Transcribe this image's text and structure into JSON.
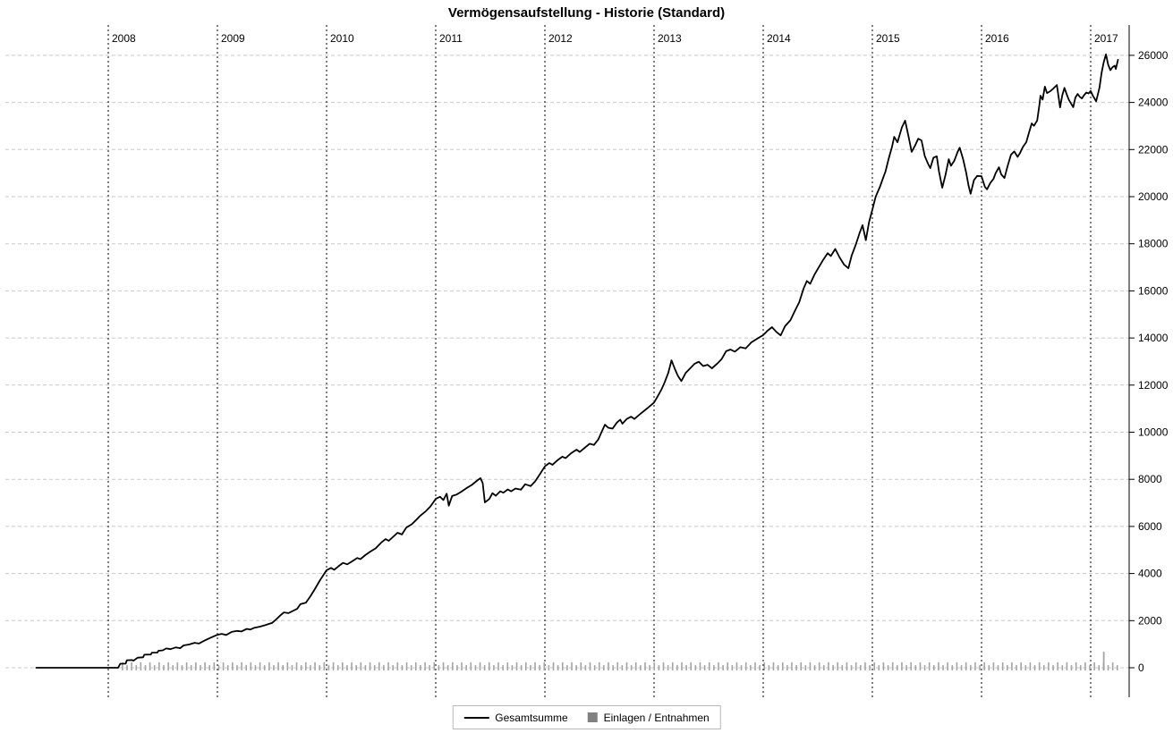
{
  "title": "Vermögensaufstellung - Historie (Standard)",
  "legend": {
    "items": [
      {
        "label": "Gesamtsumme",
        "swatch": "line",
        "color": "#000000"
      },
      {
        "label": "Einlagen / Entnahmen",
        "swatch": "square",
        "color": "#808080"
      }
    ]
  },
  "colors": {
    "background": "#ffffff",
    "axis": "#000000",
    "year_gridline": "#000000",
    "value_gridline": "#c9c9c9",
    "line": "#000000",
    "bars": "#a4a4a4",
    "text": "#000000",
    "legend_border": "#b8b8b8"
  },
  "chart_data": {
    "type": "line",
    "title": "Vermögensaufstellung - Historie (Standard)",
    "xlabel": "",
    "ylabel": "",
    "grid": true,
    "legend_position": "bottom-center",
    "x_axis": {
      "ticks": [
        2008,
        2009,
        2010,
        2011,
        2012,
        2013,
        2014,
        2015,
        2016,
        2017
      ],
      "label_position": "top",
      "gridlines": "dashed-black"
    },
    "y_axis": {
      "side": "right",
      "ticks": [
        0,
        2000,
        4000,
        6000,
        8000,
        10000,
        12000,
        14000,
        16000,
        18000,
        20000,
        22000,
        24000,
        26000
      ],
      "range_shown": [
        -1250,
        27290
      ],
      "gridlines": "dashed-light-gray"
    },
    "series": [
      {
        "name": "Gesamtsumme",
        "type": "line",
        "color": "#000000",
        "points": [
          [
            2007.34,
            0
          ],
          [
            2007.6,
            0
          ],
          [
            2007.9,
            0
          ],
          [
            2008.09,
            0
          ],
          [
            2008.11,
            170
          ],
          [
            2008.16,
            175
          ],
          [
            2008.17,
            320
          ],
          [
            2008.22,
            325
          ],
          [
            2008.23,
            300
          ],
          [
            2008.27,
            430
          ],
          [
            2008.32,
            445
          ],
          [
            2008.33,
            555
          ],
          [
            2008.39,
            560
          ],
          [
            2008.4,
            640
          ],
          [
            2008.45,
            645
          ],
          [
            2008.46,
            720
          ],
          [
            2008.5,
            740
          ],
          [
            2008.53,
            820
          ],
          [
            2008.57,
            790
          ],
          [
            2008.62,
            865
          ],
          [
            2008.66,
            830
          ],
          [
            2008.69,
            950
          ],
          [
            2008.74,
            985
          ],
          [
            2008.79,
            1060
          ],
          [
            2008.83,
            1030
          ],
          [
            2008.88,
            1150
          ],
          [
            2008.93,
            1260
          ],
          [
            2009.0,
            1400
          ],
          [
            2009.04,
            1440
          ],
          [
            2009.08,
            1390
          ],
          [
            2009.13,
            1520
          ],
          [
            2009.18,
            1565
          ],
          [
            2009.22,
            1540
          ],
          [
            2009.27,
            1650
          ],
          [
            2009.3,
            1620
          ],
          [
            2009.34,
            1700
          ],
          [
            2009.39,
            1745
          ],
          [
            2009.44,
            1815
          ],
          [
            2009.5,
            1900
          ],
          [
            2009.54,
            2060
          ],
          [
            2009.58,
            2240
          ],
          [
            2009.61,
            2350
          ],
          [
            2009.65,
            2320
          ],
          [
            2009.69,
            2410
          ],
          [
            2009.73,
            2500
          ],
          [
            2009.76,
            2700
          ],
          [
            2009.81,
            2760
          ],
          [
            2009.85,
            3020
          ],
          [
            2009.89,
            3320
          ],
          [
            2009.94,
            3720
          ],
          [
            2010.0,
            4140
          ],
          [
            2010.04,
            4240
          ],
          [
            2010.07,
            4160
          ],
          [
            2010.11,
            4310
          ],
          [
            2010.15,
            4450
          ],
          [
            2010.19,
            4390
          ],
          [
            2010.23,
            4510
          ],
          [
            2010.28,
            4660
          ],
          [
            2010.31,
            4610
          ],
          [
            2010.36,
            4800
          ],
          [
            2010.4,
            4930
          ],
          [
            2010.45,
            5070
          ],
          [
            2010.5,
            5310
          ],
          [
            2010.54,
            5460
          ],
          [
            2010.57,
            5390
          ],
          [
            2010.61,
            5560
          ],
          [
            2010.65,
            5730
          ],
          [
            2010.69,
            5660
          ],
          [
            2010.73,
            5950
          ],
          [
            2010.78,
            6090
          ],
          [
            2010.82,
            6270
          ],
          [
            2010.86,
            6460
          ],
          [
            2010.91,
            6650
          ],
          [
            2010.95,
            6840
          ],
          [
            2011.0,
            7170
          ],
          [
            2011.04,
            7260
          ],
          [
            2011.07,
            7120
          ],
          [
            2011.1,
            7390
          ],
          [
            2011.12,
            6880
          ],
          [
            2011.15,
            7290
          ],
          [
            2011.19,
            7350
          ],
          [
            2011.23,
            7460
          ],
          [
            2011.28,
            7620
          ],
          [
            2011.33,
            7760
          ],
          [
            2011.38,
            7950
          ],
          [
            2011.41,
            8050
          ],
          [
            2011.43,
            7840
          ],
          [
            2011.45,
            7020
          ],
          [
            2011.49,
            7160
          ],
          [
            2011.52,
            7410
          ],
          [
            2011.55,
            7300
          ],
          [
            2011.59,
            7490
          ],
          [
            2011.62,
            7430
          ],
          [
            2011.66,
            7570
          ],
          [
            2011.69,
            7490
          ],
          [
            2011.73,
            7610
          ],
          [
            2011.78,
            7560
          ],
          [
            2011.82,
            7790
          ],
          [
            2011.87,
            7710
          ],
          [
            2011.91,
            7910
          ],
          [
            2011.95,
            8190
          ],
          [
            2012.0,
            8550
          ],
          [
            2012.04,
            8690
          ],
          [
            2012.07,
            8620
          ],
          [
            2012.11,
            8790
          ],
          [
            2012.16,
            8960
          ],
          [
            2012.19,
            8900
          ],
          [
            2012.24,
            9110
          ],
          [
            2012.29,
            9260
          ],
          [
            2012.32,
            9160
          ],
          [
            2012.37,
            9360
          ],
          [
            2012.41,
            9510
          ],
          [
            2012.45,
            9460
          ],
          [
            2012.49,
            9700
          ],
          [
            2012.52,
            10010
          ],
          [
            2012.55,
            10320
          ],
          [
            2012.58,
            10190
          ],
          [
            2012.62,
            10150
          ],
          [
            2012.66,
            10410
          ],
          [
            2012.69,
            10530
          ],
          [
            2012.71,
            10360
          ],
          [
            2012.75,
            10560
          ],
          [
            2012.79,
            10660
          ],
          [
            2012.82,
            10560
          ],
          [
            2012.87,
            10760
          ],
          [
            2012.91,
            10910
          ],
          [
            2012.95,
            11060
          ],
          [
            2013.0,
            11260
          ],
          [
            2013.03,
            11500
          ],
          [
            2013.07,
            11830
          ],
          [
            2013.1,
            12150
          ],
          [
            2013.13,
            12520
          ],
          [
            2013.16,
            13050
          ],
          [
            2013.19,
            12690
          ],
          [
            2013.22,
            12380
          ],
          [
            2013.25,
            12170
          ],
          [
            2013.29,
            12520
          ],
          [
            2013.33,
            12710
          ],
          [
            2013.37,
            12900
          ],
          [
            2013.41,
            12990
          ],
          [
            2013.45,
            12810
          ],
          [
            2013.49,
            12860
          ],
          [
            2013.53,
            12710
          ],
          [
            2013.58,
            12920
          ],
          [
            2013.62,
            13110
          ],
          [
            2013.66,
            13440
          ],
          [
            2013.7,
            13510
          ],
          [
            2013.74,
            13420
          ],
          [
            2013.79,
            13610
          ],
          [
            2013.84,
            13560
          ],
          [
            2013.89,
            13810
          ],
          [
            2013.94,
            13960
          ],
          [
            2014.0,
            14120
          ],
          [
            2014.04,
            14310
          ],
          [
            2014.08,
            14460
          ],
          [
            2014.12,
            14260
          ],
          [
            2014.16,
            14110
          ],
          [
            2014.2,
            14500
          ],
          [
            2014.25,
            14760
          ],
          [
            2014.29,
            15150
          ],
          [
            2014.33,
            15520
          ],
          [
            2014.37,
            16100
          ],
          [
            2014.4,
            16420
          ],
          [
            2014.43,
            16300
          ],
          [
            2014.47,
            16690
          ],
          [
            2014.51,
            17010
          ],
          [
            2014.55,
            17320
          ],
          [
            2014.59,
            17600
          ],
          [
            2014.62,
            17480
          ],
          [
            2014.66,
            17780
          ],
          [
            2014.7,
            17420
          ],
          [
            2014.74,
            17120
          ],
          [
            2014.78,
            16960
          ],
          [
            2014.81,
            17490
          ],
          [
            2014.85,
            17990
          ],
          [
            2014.88,
            18420
          ],
          [
            2014.91,
            18790
          ],
          [
            2014.94,
            18150
          ],
          [
            2014.97,
            18920
          ],
          [
            2015.0,
            19450
          ],
          [
            2015.03,
            20000
          ],
          [
            2015.07,
            20420
          ],
          [
            2015.1,
            20820
          ],
          [
            2015.12,
            21060
          ],
          [
            2015.15,
            21620
          ],
          [
            2015.18,
            22120
          ],
          [
            2015.2,
            22540
          ],
          [
            2015.23,
            22310
          ],
          [
            2015.27,
            22930
          ],
          [
            2015.3,
            23230
          ],
          [
            2015.33,
            22580
          ],
          [
            2015.36,
            21900
          ],
          [
            2015.39,
            22160
          ],
          [
            2015.42,
            22460
          ],
          [
            2015.45,
            22390
          ],
          [
            2015.48,
            21720
          ],
          [
            2015.51,
            21400
          ],
          [
            2015.53,
            21210
          ],
          [
            2015.56,
            21660
          ],
          [
            2015.59,
            21710
          ],
          [
            2015.61,
            21080
          ],
          [
            2015.64,
            20380
          ],
          [
            2015.67,
            20920
          ],
          [
            2015.7,
            21590
          ],
          [
            2015.72,
            21310
          ],
          [
            2015.75,
            21520
          ],
          [
            2015.78,
            21890
          ],
          [
            2015.8,
            22080
          ],
          [
            2015.83,
            21610
          ],
          [
            2015.86,
            21010
          ],
          [
            2015.88,
            20490
          ],
          [
            2015.9,
            20120
          ],
          [
            2015.93,
            20700
          ],
          [
            2015.96,
            20880
          ],
          [
            2016.0,
            20870
          ],
          [
            2016.03,
            20420
          ],
          [
            2016.05,
            20310
          ],
          [
            2016.08,
            20580
          ],
          [
            2016.11,
            20760
          ],
          [
            2016.13,
            21010
          ],
          [
            2016.16,
            21250
          ],
          [
            2016.18,
            20950
          ],
          [
            2016.21,
            20790
          ],
          [
            2016.24,
            21320
          ],
          [
            2016.27,
            21780
          ],
          [
            2016.3,
            21920
          ],
          [
            2016.33,
            21690
          ],
          [
            2016.35,
            21830
          ],
          [
            2016.38,
            22120
          ],
          [
            2016.41,
            22310
          ],
          [
            2016.43,
            22650
          ],
          [
            2016.46,
            23110
          ],
          [
            2016.48,
            23010
          ],
          [
            2016.51,
            23230
          ],
          [
            2016.53,
            23900
          ],
          [
            2016.54,
            24290
          ],
          [
            2016.56,
            24120
          ],
          [
            2016.58,
            24670
          ],
          [
            2016.6,
            24400
          ],
          [
            2016.63,
            24480
          ],
          [
            2016.66,
            24600
          ],
          [
            2016.69,
            24740
          ],
          [
            2016.72,
            23790
          ],
          [
            2016.74,
            24310
          ],
          [
            2016.76,
            24620
          ],
          [
            2016.78,
            24340
          ],
          [
            2016.8,
            24110
          ],
          [
            2016.82,
            23960
          ],
          [
            2016.84,
            23800
          ],
          [
            2016.86,
            24210
          ],
          [
            2016.88,
            24360
          ],
          [
            2016.9,
            24240
          ],
          [
            2016.92,
            24170
          ],
          [
            2016.94,
            24310
          ],
          [
            2016.96,
            24420
          ],
          [
            2016.98,
            24380
          ],
          [
            2017.0,
            24490
          ],
          [
            2017.02,
            24290
          ],
          [
            2017.05,
            24050
          ],
          [
            2017.08,
            24620
          ],
          [
            2017.1,
            25260
          ],
          [
            2017.12,
            25710
          ],
          [
            2017.14,
            26040
          ],
          [
            2017.16,
            25610
          ],
          [
            2017.18,
            25370
          ],
          [
            2017.2,
            25500
          ],
          [
            2017.22,
            25560
          ],
          [
            2017.23,
            25420
          ],
          [
            2017.25,
            25810
          ]
        ]
      },
      {
        "name": "Einlagen / Entnahmen",
        "type": "bar",
        "color": "#a4a4a4",
        "bars_pattern": {
          "start_year": 2008.13,
          "end_year": 2017.27,
          "interval_years": 0.042,
          "alternating_values": [
            230,
            110
          ],
          "spikes": [
            {
              "year": 2017.12,
              "value": 680
            }
          ]
        }
      }
    ]
  }
}
